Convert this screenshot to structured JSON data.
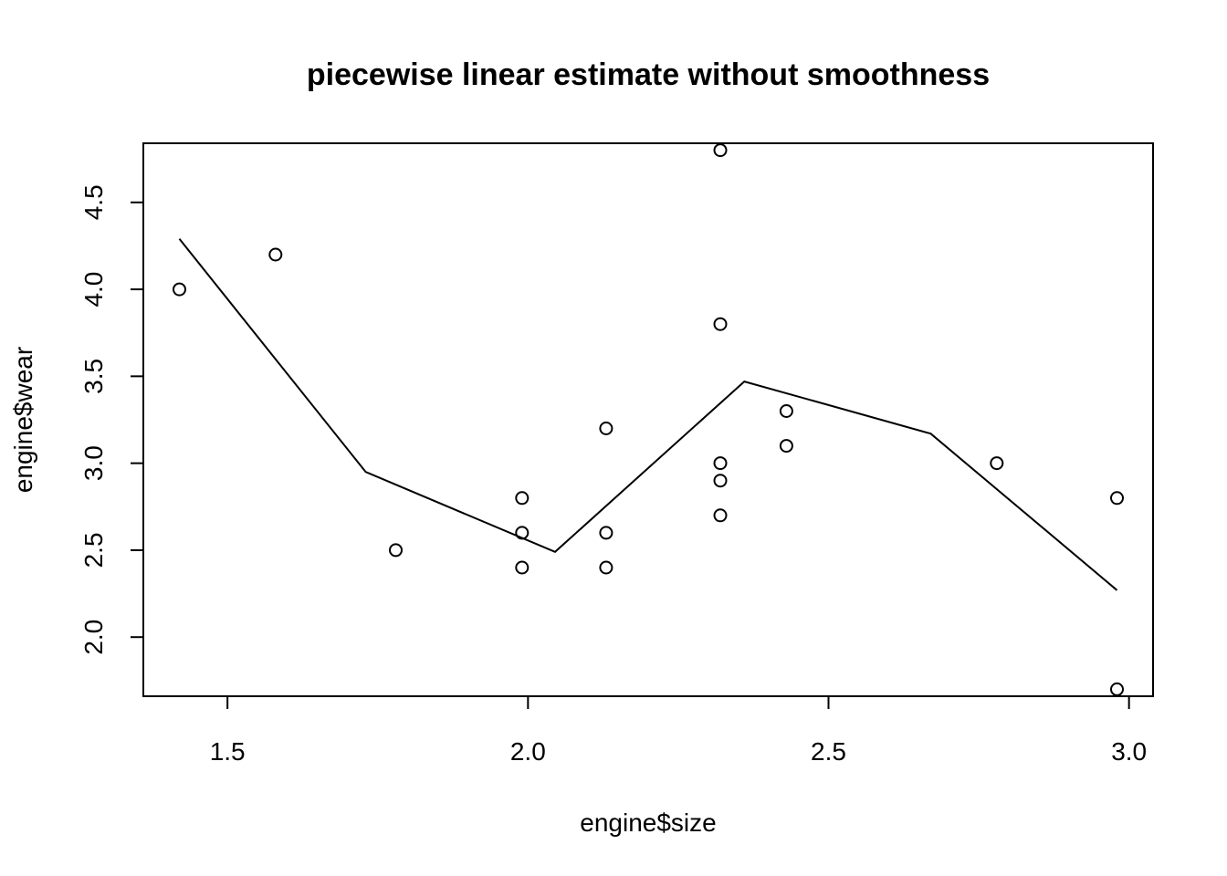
{
  "chart_data": {
    "type": "scatter",
    "title": "piecewise linear estimate without smoothness",
    "xlabel": "engine$size",
    "ylabel": "engine$wear",
    "xlim": [
      1.36,
      3.04
    ],
    "ylim": [
      1.66,
      4.84
    ],
    "xticks": [
      1.5,
      2.0,
      2.5,
      3.0
    ],
    "xtick_labels": [
      "1.5",
      "2.0",
      "2.5",
      "3.0"
    ],
    "yticks": [
      2.0,
      2.5,
      3.0,
      3.5,
      4.0,
      4.5
    ],
    "ytick_labels": [
      "2.0",
      "2.5",
      "3.0",
      "3.5",
      "4.0",
      "4.5"
    ],
    "grid": false,
    "points": {
      "x": [
        1.42,
        1.58,
        1.78,
        1.99,
        1.99,
        1.99,
        2.13,
        2.13,
        2.13,
        2.32,
        2.32,
        2.32,
        2.32,
        2.32,
        2.43,
        2.43,
        2.78,
        2.98,
        2.98
      ],
      "y": [
        4.0,
        4.2,
        2.5,
        2.4,
        2.6,
        2.8,
        2.4,
        2.6,
        3.2,
        2.7,
        2.9,
        3.0,
        3.8,
        4.8,
        3.1,
        3.3,
        3.0,
        1.7,
        2.8
      ]
    },
    "line": {
      "x": [
        1.42,
        1.73,
        2.045,
        2.36,
        2.67,
        2.98
      ],
      "y": [
        4.29,
        2.95,
        2.49,
        3.47,
        3.17,
        2.27
      ]
    }
  }
}
